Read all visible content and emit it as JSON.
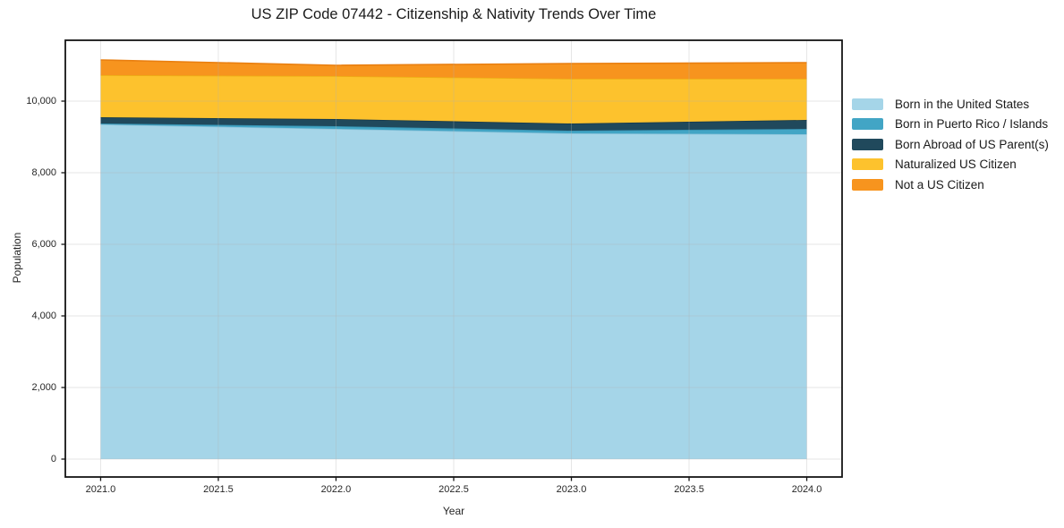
{
  "figure": {
    "title": "US ZIP Code 07442 - Citizenship & Nativity Trends Over Time",
    "background_color": "#ffffff",
    "spine_color": "#141414",
    "grid_color": "#b0b0b0"
  },
  "chart_data": {
    "type": "area",
    "stacked": true,
    "title": "US ZIP Code 07442 - Citizenship & Nativity Trends Over Time",
    "xlabel": "Year",
    "ylabel": "Population",
    "x": [
      2021,
      2022,
      2023,
      2024
    ],
    "xlim": [
      2020.85,
      2024.15
    ],
    "ylim": [
      -500,
      11700
    ],
    "x_tick_values": [
      2021.0,
      2021.5,
      2022.0,
      2022.5,
      2023.0,
      2023.5,
      2024.0
    ],
    "x_tick_labels": [
      "2021.0",
      "2021.5",
      "2022.0",
      "2022.5",
      "2023.0",
      "2023.5",
      "2024.0"
    ],
    "y_tick_values": [
      0,
      2000,
      4000,
      6000,
      8000,
      10000
    ],
    "y_tick_labels": [
      "0",
      "2,000",
      "4,000",
      "6,000",
      "8,000",
      "10,000"
    ],
    "grid": true,
    "legend_position": "right of plot, frameless",
    "series": [
      {
        "name": "Born in the United States",
        "color": "#a5d5e8",
        "edge_color": "#8cc3da",
        "values": [
          9350,
          9225,
          9100,
          9075
        ]
      },
      {
        "name": "Born in Puerto Rico / Islands",
        "color": "#42a5c5",
        "edge_color": "#3691b0",
        "values": [
          25,
          75,
          75,
          150
        ]
      },
      {
        "name": "Born Abroad of US Parent(s)",
        "color": "#20495c",
        "edge_color": "#16394a",
        "values": [
          175,
          200,
          200,
          250
        ]
      },
      {
        "name": "Naturalized US Citizen",
        "color": "#fdc22d",
        "edge_color": "#edae15",
        "values": [
          1175,
          1200,
          1250,
          1150
        ]
      },
      {
        "name": "Not a US Citizen",
        "color": "#f7941e",
        "edge_color": "#e97f10",
        "values": [
          425,
          300,
          425,
          450
        ]
      }
    ]
  }
}
